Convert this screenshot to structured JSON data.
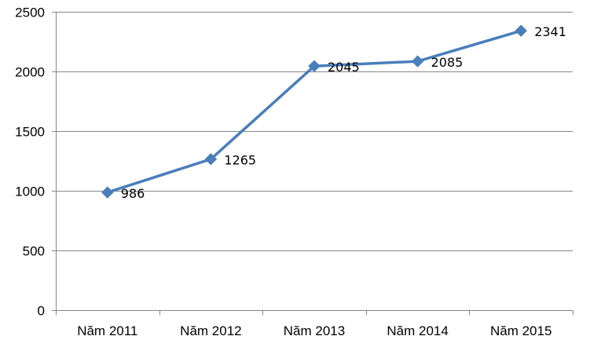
{
  "chart_data": {
    "type": "line",
    "categories": [
      "Năm 2011",
      "Năm 2012",
      "Năm 2013",
      "Năm 2014",
      "Năm 2015"
    ],
    "series": [
      {
        "values": [
          986,
          1265,
          2045,
          2085,
          2341
        ]
      }
    ],
    "data_labels": [
      "986",
      "1265",
      "2045",
      "2085",
      "2341"
    ],
    "y_ticks": [
      0,
      500,
      1000,
      1500,
      2000,
      2500
    ],
    "ylim": [
      0,
      2500
    ],
    "grid": "horizontal",
    "marker": "diamond",
    "legend": "none",
    "colors": {
      "series": "#4A7EBB",
      "grid": "#868686",
      "axis": "#868686"
    }
  }
}
